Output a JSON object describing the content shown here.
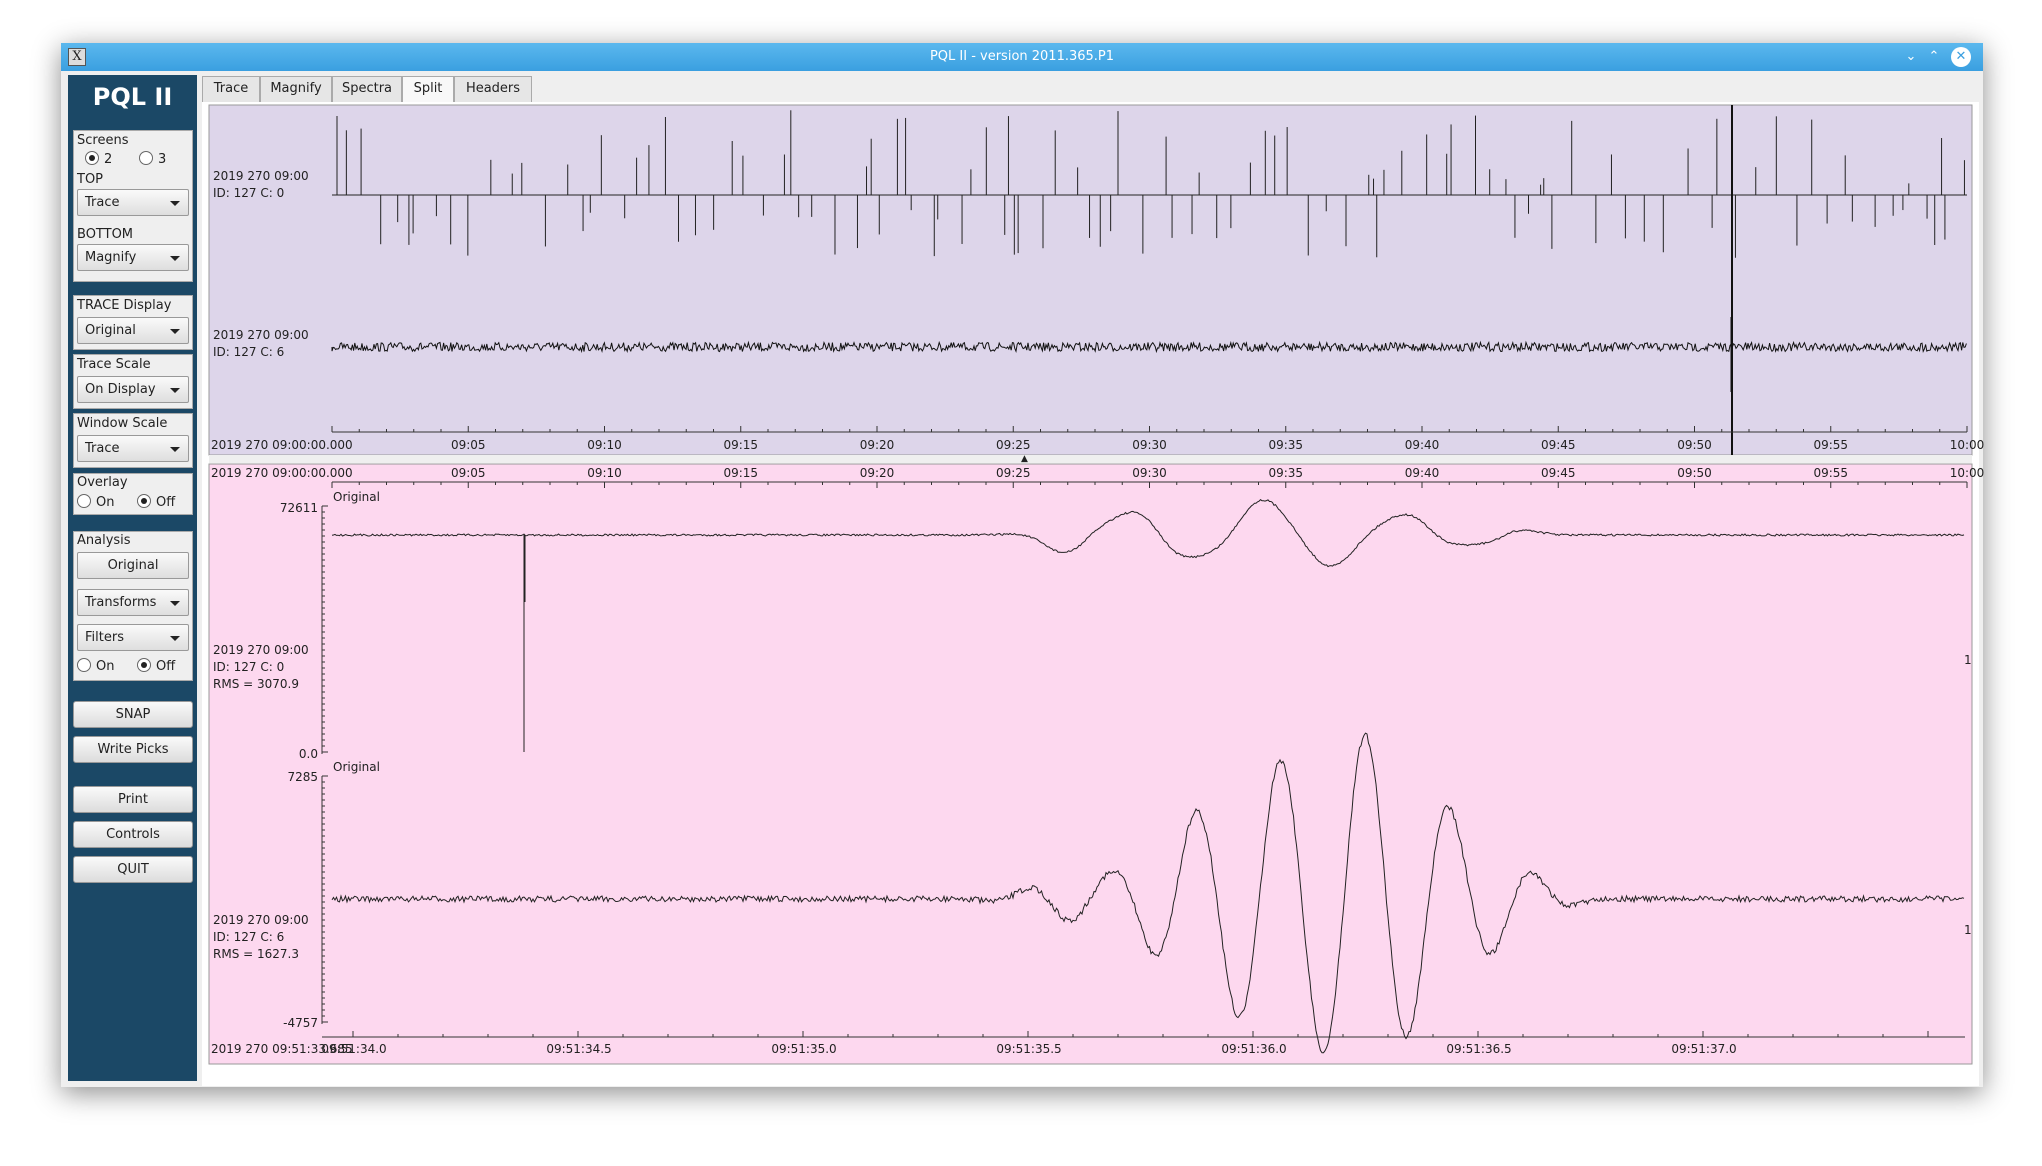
{
  "window": {
    "title": "PQL II - version 2011.365.P1"
  },
  "sidebar": {
    "logo": "PQL II",
    "screens": {
      "label": "Screens",
      "options": [
        "2",
        "3"
      ],
      "selected": "2"
    },
    "top": {
      "label": "TOP",
      "value": "Trace"
    },
    "bottom": {
      "label": "BOTTOM",
      "value": "Magnify"
    },
    "trace_display": {
      "label": "TRACE Display",
      "value": "Original"
    },
    "trace_scale": {
      "label": "Trace Scale",
      "value": "On Display"
    },
    "window_scale": {
      "label": "Window Scale",
      "value": "Trace"
    },
    "overlay": {
      "label": "Overlay",
      "options": [
        "On",
        "Off"
      ],
      "selected": "Off"
    },
    "analysis": {
      "label": "Analysis",
      "original_button": "Original",
      "transforms": "Transforms",
      "filters": "Filters",
      "options": [
        "On",
        "Off"
      ],
      "selected": "Off"
    },
    "buttons": {
      "snap": "SNAP",
      "write_picks": "Write Picks",
      "print": "Print",
      "controls": "Controls",
      "quit": "QUIT"
    }
  },
  "tabs": [
    {
      "label": "Trace"
    },
    {
      "label": "Magnify"
    },
    {
      "label": "Spectra"
    },
    {
      "label": "Split",
      "active": true
    },
    {
      "label": "Headers"
    }
  ],
  "top_panel": {
    "background": "#ddd5ea",
    "traces": [
      {
        "time": "2019 270 09:00",
        "id": "ID: 127 C: 0"
      },
      {
        "time": "2019 270 09:00",
        "id": "ID: 127 C: 6"
      }
    ],
    "axis": {
      "start_label": "2019 270 09:00:00.000",
      "ticks": [
        "09:05",
        "09:10",
        "09:15",
        "09:20",
        "09:25",
        "09:30",
        "09:35",
        "09:40",
        "09:45",
        "09:50",
        "09:55",
        "10:00"
      ]
    }
  },
  "bottom_panel": {
    "background": "#fdd8ef",
    "axis_top": {
      "start_label": "2019 270 09:00:00.000",
      "ticks": [
        "09:05",
        "09:10",
        "09:15",
        "09:20",
        "09:25",
        "09:30",
        "09:35",
        "09:40",
        "09:45",
        "09:50",
        "09:55",
        "10:00"
      ]
    },
    "traces": [
      {
        "label": "Original",
        "ymax": "72611",
        "ymin": "0.0",
        "time": "2019 270 09:00",
        "id": "ID: 127 C: 0",
        "rms": "RMS = 3070.9",
        "scale": "1"
      },
      {
        "label": "Original",
        "ymax": "7285",
        "ymin": "-4757",
        "time": "2019 270 09:00",
        "id": "ID: 127 C: 6",
        "rms": "RMS = 1627.3",
        "scale": "1"
      }
    ],
    "axis_bottom": {
      "start_label": "2019 270 09:51:33.685",
      "ticks": [
        "09:51:34.0",
        "09:51:34.5",
        "09:51:35.0",
        "09:51:35.5",
        "09:51:36.0",
        "09:51:36.5",
        "09:51:37.0"
      ]
    }
  }
}
